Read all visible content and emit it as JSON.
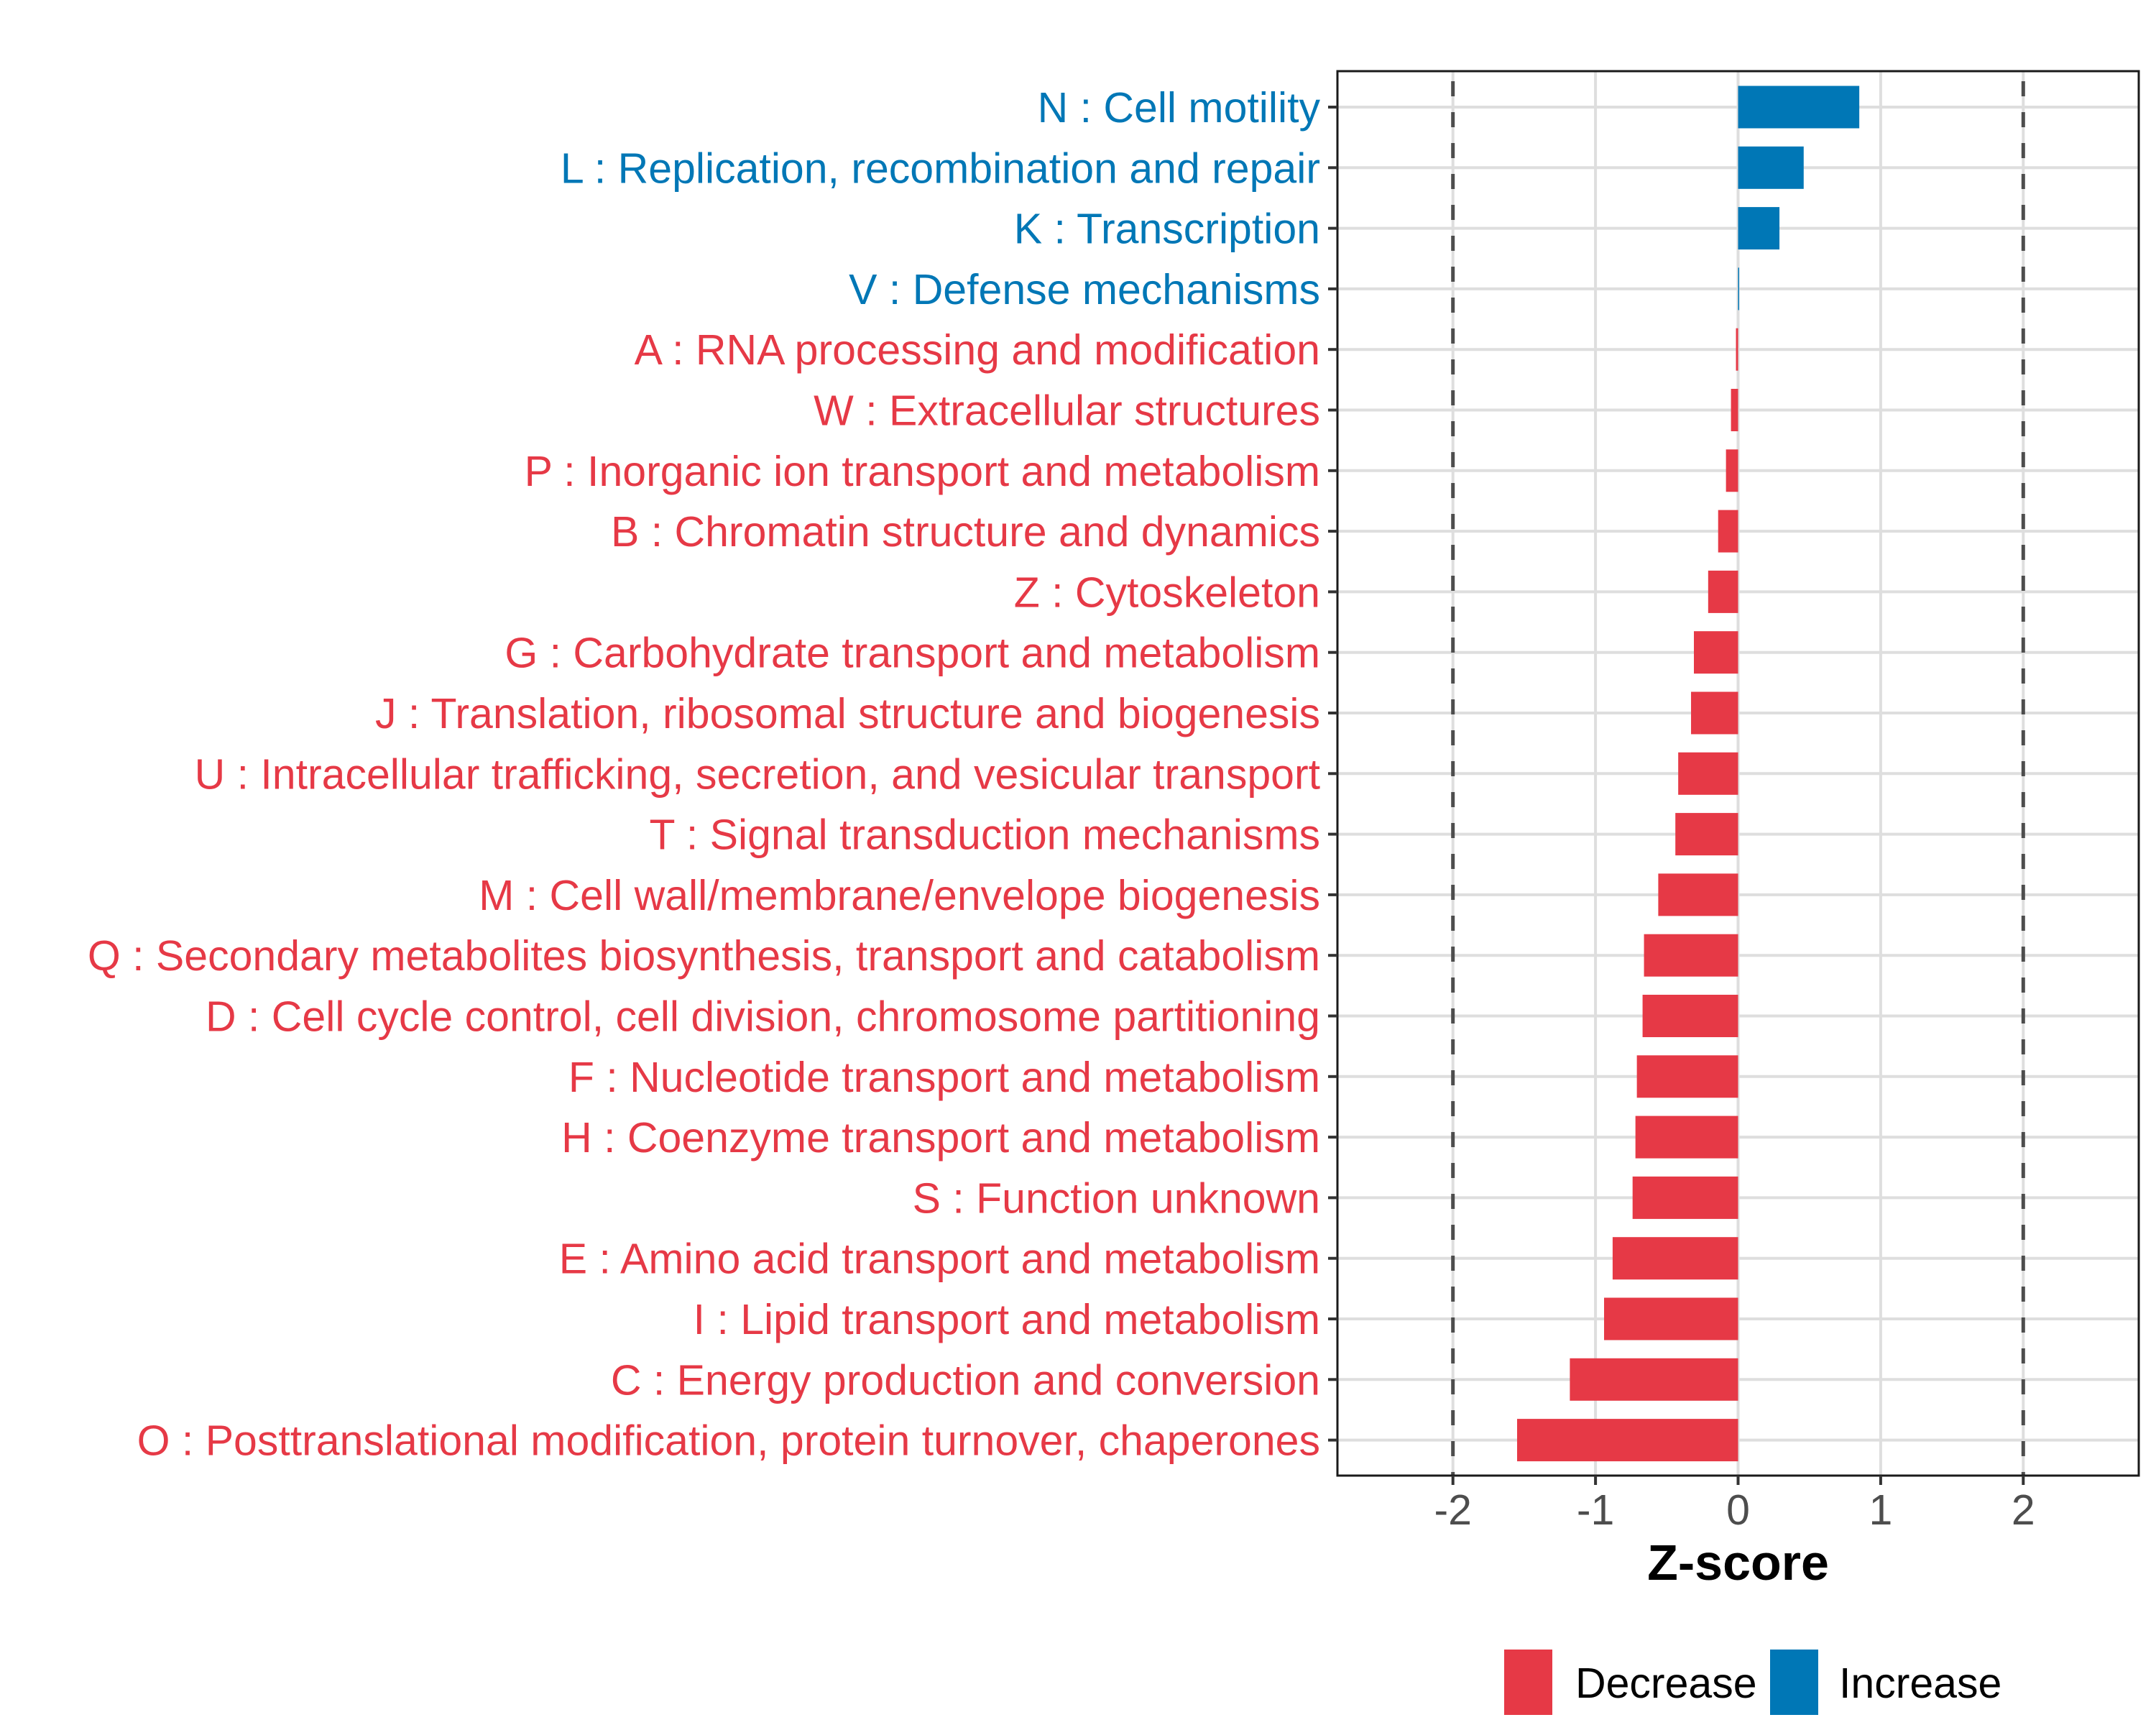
{
  "chart_data": {
    "type": "bar",
    "orientation": "horizontal",
    "title": "",
    "xlabel": "Z-score",
    "ylabel": "",
    "xlim": [
      -2.81,
      2.81
    ],
    "xticks": [
      -2,
      -1,
      0,
      1,
      2
    ],
    "xtick_labels": [
      "-2",
      "-1",
      "0",
      "1",
      "2"
    ],
    "reference_lines": [
      -2,
      2
    ],
    "reference_line_style": "dashed",
    "grid": true,
    "colors": {
      "Decrease": "#E63946",
      "Increase": "#0077B6"
    },
    "legend": {
      "position": "bottom",
      "entries": [
        {
          "label": "Decrease",
          "color": "#E63946"
        },
        {
          "label": "Increase",
          "color": "#0077B6"
        }
      ]
    },
    "categories": [
      "N : Cell motility",
      "L : Replication, recombination and repair",
      "K : Transcription",
      "V : Defense mechanisms",
      "A : RNA processing and modification",
      "W : Extracellular structures",
      "P : Inorganic ion transport and metabolism",
      "B : Chromatin structure and dynamics",
      "Z : Cytoskeleton",
      "G : Carbohydrate transport and metabolism",
      "J : Translation, ribosomal structure and biogenesis",
      "U : Intracellular trafficking, secretion, and vesicular transport",
      "T : Signal transduction mechanisms",
      "M : Cell wall/membrane/envelope biogenesis",
      "Q : Secondary metabolites biosynthesis, transport and catabolism",
      "D : Cell cycle control, cell division, chromosome partitioning",
      "F : Nucleotide transport and metabolism",
      "H : Coenzyme transport and metabolism",
      "S : Function unknown",
      "E : Amino acid transport and metabolism",
      "I : Lipid transport and metabolism",
      "C : Energy production and conversion",
      "O : Posttranslational modification, protein turnover, chaperones"
    ],
    "values": [
      0.85,
      0.46,
      0.29,
      0.005,
      -0.015,
      -0.05,
      -0.085,
      -0.14,
      -0.21,
      -0.31,
      -0.33,
      -0.42,
      -0.44,
      -0.56,
      -0.66,
      -0.67,
      -0.71,
      -0.72,
      -0.74,
      -0.88,
      -0.94,
      -1.18,
      -1.55
    ],
    "groups": [
      "Increase",
      "Increase",
      "Increase",
      "Increase",
      "Decrease",
      "Decrease",
      "Decrease",
      "Decrease",
      "Decrease",
      "Decrease",
      "Decrease",
      "Decrease",
      "Decrease",
      "Decrease",
      "Decrease",
      "Decrease",
      "Decrease",
      "Decrease",
      "Decrease",
      "Decrease",
      "Decrease",
      "Decrease",
      "Decrease"
    ]
  }
}
